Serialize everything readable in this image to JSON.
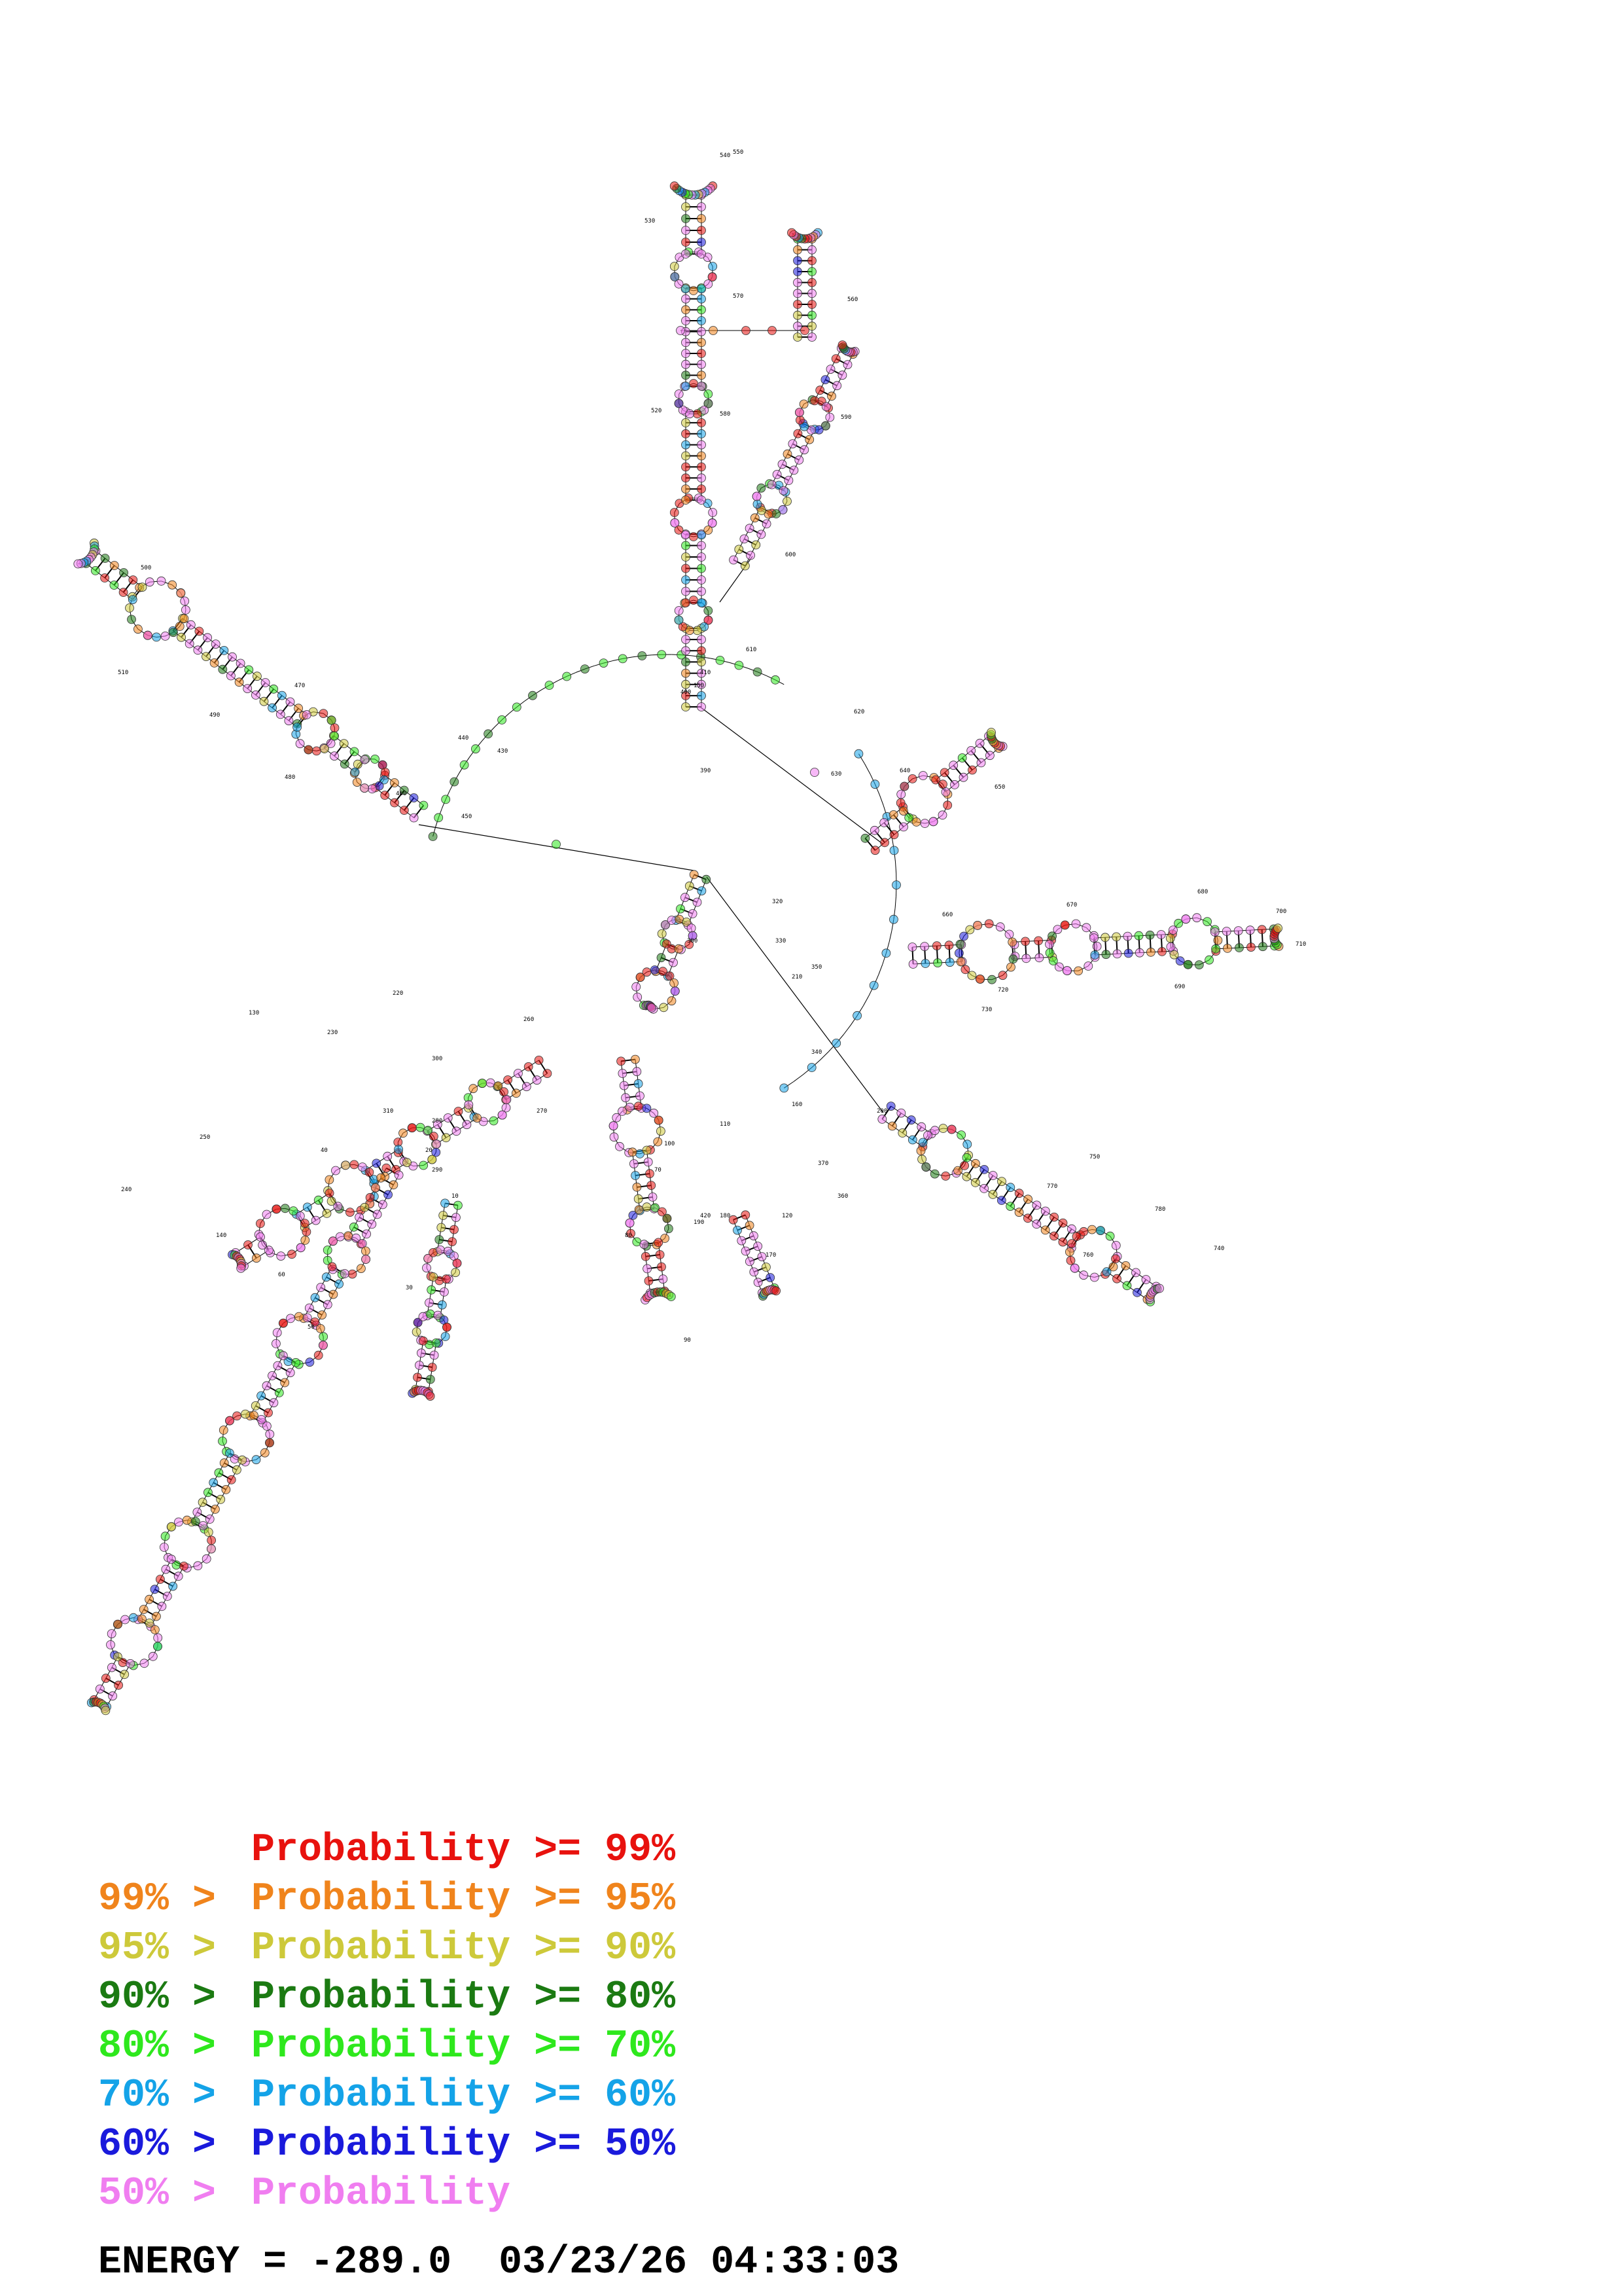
{
  "legend": {
    "entries": [
      {
        "upper": "",
        "lower": "Probability >= 99%",
        "color": "#e8120e"
      },
      {
        "upper": "99% >",
        "lower": "Probability >= 95%",
        "color": "#f0841c"
      },
      {
        "upper": "95% >",
        "lower": "Probability >= 90%",
        "color": "#cdc93a"
      },
      {
        "upper": "90% >",
        "lower": "Probability >= 80%",
        "color": "#1b7a12"
      },
      {
        "upper": "80% >",
        "lower": "Probability >= 70%",
        "color": "#2ee81d"
      },
      {
        "upper": "70% >",
        "lower": "Probability >= 60%",
        "color": "#14a3e8"
      },
      {
        "upper": "60% >",
        "lower": "Probability >= 50%",
        "color": "#1a1adc"
      },
      {
        "upper": "50% >",
        "lower": "Probability",
        "color": "#f07ef0"
      }
    ]
  },
  "energy": {
    "label": "ENERGY = ",
    "value": "-289.0",
    "timestamp": "03/23/26 04:33:03"
  },
  "diagram": {
    "position_labels": [
      "10",
      "20",
      "30",
      "40",
      "50",
      "60",
      "70",
      "80",
      "90",
      "100",
      "110",
      "120",
      "130",
      "140",
      "150",
      "160",
      "170",
      "180",
      "190",
      "200",
      "210",
      "220",
      "230",
      "240",
      "250",
      "260",
      "270",
      "280",
      "290",
      "300",
      "310",
      "320",
      "330",
      "340",
      "350",
      "360",
      "370",
      "380",
      "390",
      "400",
      "410",
      "420",
      "430",
      "440",
      "450",
      "460",
      "470",
      "480",
      "490",
      "500",
      "510",
      "520",
      "530",
      "540",
      "550",
      "560",
      "570",
      "580",
      "590",
      "600",
      "610",
      "620",
      "630",
      "640",
      "650",
      "660",
      "670",
      "680",
      "690",
      "700",
      "710",
      "720",
      "730",
      "740",
      "750",
      "760",
      "770",
      "780"
    ]
  }
}
